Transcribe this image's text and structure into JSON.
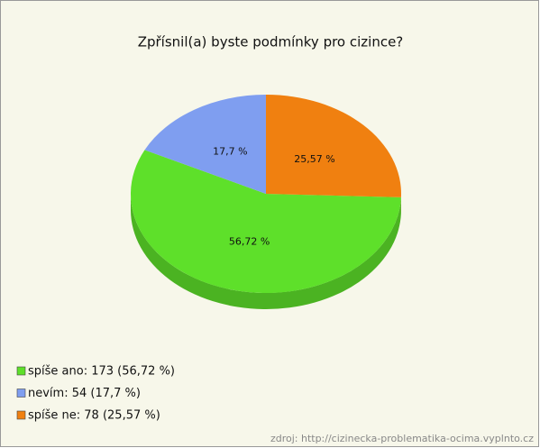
{
  "chart_data": {
    "type": "pie",
    "title": "Zpřísnil(a) byste podmínky pro cizince?",
    "categories": [
      "spíše ano: 173 (56,72 %)",
      "nevím: 54 (17,7 %)",
      "spíše ne: 78 (25,57 %)"
    ],
    "values": [
      56.72,
      17.7,
      25.57
    ],
    "value_labels": [
      "56,72 %",
      "17,7 %",
      "25,57 %"
    ],
    "colors": [
      "#5ee02a",
      "#7f9ef0",
      "#f08010"
    ],
    "legend": "bottom-left",
    "source": "zdroj: http://cizinecka-problematika-ocima.vyplnto.cz"
  }
}
